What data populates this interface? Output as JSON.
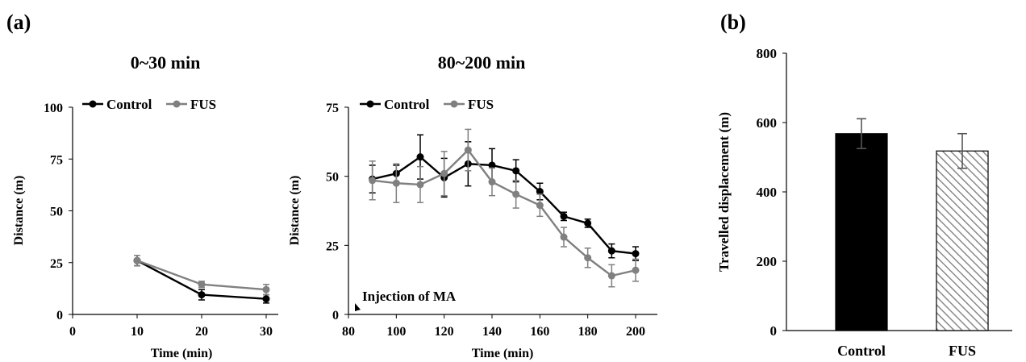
{
  "panels": {
    "a_label": "(a)",
    "b_label": "(b)"
  },
  "chart_data": [
    {
      "type": "line",
      "title": "0~30 min",
      "xlabel": "Time (min)",
      "ylabel": "Distance (m)",
      "xlim": [
        0,
        30
      ],
      "ylim": [
        0,
        100
      ],
      "xticks": [
        0,
        10,
        20,
        30
      ],
      "yticks": [
        0,
        25,
        50,
        75,
        100
      ],
      "legend": "top",
      "series": [
        {
          "name": "Control",
          "color": "#000000",
          "x": [
            10,
            20,
            30
          ],
          "y": [
            26,
            9.5,
            7.5
          ],
          "err": [
            2.5,
            2.5,
            2
          ]
        },
        {
          "name": "FUS",
          "color": "#808080",
          "x": [
            10,
            20,
            30
          ],
          "y": [
            26,
            14.5,
            12
          ],
          "err": [
            2.5,
            1.5,
            2.5
          ]
        }
      ]
    },
    {
      "type": "line",
      "title": "80~200 min",
      "xlabel": "Time (min)",
      "ylabel": "Distance (m)",
      "xlim": [
        80,
        200
      ],
      "ylim": [
        0,
        75
      ],
      "xticks": [
        80,
        100,
        120,
        140,
        160,
        180,
        200
      ],
      "yticks": [
        0,
        25,
        50,
        75
      ],
      "legend": "top",
      "annotation": "Injection of MA",
      "annotation_x": 80,
      "series": [
        {
          "name": "Control",
          "color": "#000000",
          "x": [
            90,
            100,
            110,
            120,
            130,
            140,
            150,
            160,
            170,
            180,
            190,
            200
          ],
          "y": [
            49,
            51,
            57,
            49.5,
            54.5,
            54,
            52,
            44.5,
            35.5,
            33,
            23,
            22
          ],
          "err": [
            5,
            3,
            8,
            7,
            8,
            6,
            4,
            3,
            1.5,
            1.5,
            2.5,
            2.5
          ]
        },
        {
          "name": "FUS",
          "color": "#808080",
          "x": [
            90,
            100,
            110,
            120,
            130,
            140,
            150,
            160,
            170,
            180,
            190,
            200
          ],
          "y": [
            48.5,
            47.5,
            47,
            51,
            59.5,
            48,
            43.5,
            39.5,
            28,
            20.5,
            14,
            16
          ],
          "err": [
            7,
            7,
            6.5,
            8,
            7.5,
            5,
            5,
            4,
            3.5,
            3.5,
            4,
            4
          ]
        }
      ]
    },
    {
      "type": "bar",
      "title": "",
      "xlabel": "",
      "ylabel": "Travelled displacement (m)",
      "ylim": [
        0,
        800
      ],
      "yticks": [
        0,
        200,
        400,
        600,
        800
      ],
      "categories": [
        "Control",
        "FUS"
      ],
      "values": [
        568,
        518
      ],
      "err": [
        43,
        50
      ],
      "fills": [
        "solid-black",
        "diagonal-hatch-gray"
      ]
    }
  ]
}
